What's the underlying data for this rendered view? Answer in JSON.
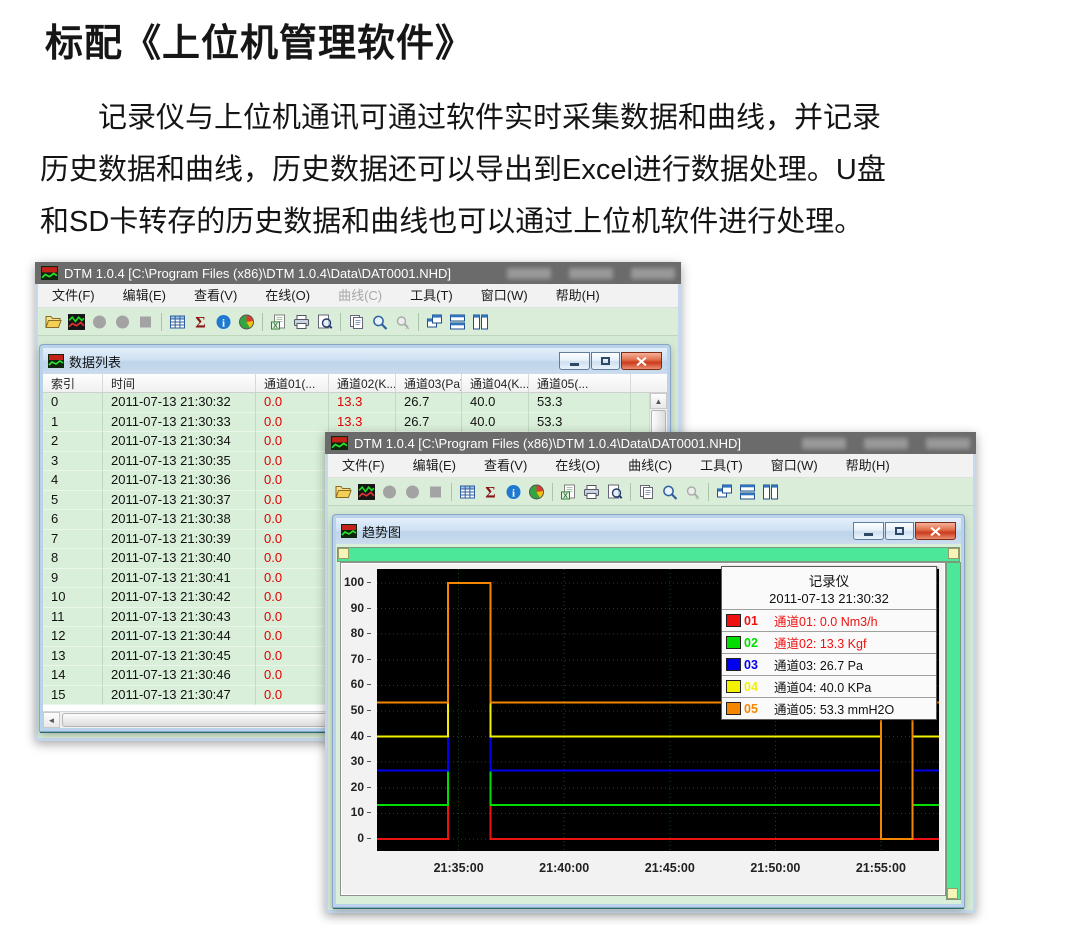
{
  "page": {
    "heading": "标配《上位机管理软件》",
    "para_lines": [
      "记录仪与上位机通讯可通过软件实时采集数据和曲线，并记录",
      "历史数据和曲线，历史数据还可以导出到Excel进行数据处理。U盘",
      "和SD卡转存的历史数据和曲线也可以通过上位机软件进行处理。"
    ]
  },
  "app": {
    "window_title": "DTM 1.0.4 [C:\\Program Files (x86)\\DTM 1.0.4\\Data\\DAT0001.NHD]",
    "menus": [
      "文件(F)",
      "编辑(E)",
      "查看(V)",
      "在线(O)",
      "曲线(C)",
      "工具(T)",
      "窗口(W)",
      "帮助(H)"
    ],
    "toolbar_groups": [
      [
        "open-file",
        "trend-view",
        "record-a",
        "record-b",
        "stop"
      ],
      [
        "data-grid",
        "statistics-sigma",
        "info",
        "pie-chart"
      ],
      [
        "export-excel",
        "print",
        "print-preview"
      ],
      [
        "copy",
        "zoom-search",
        "zoom-locked"
      ],
      [
        "cascade-windows",
        "tile-horizontal",
        "tile-vertical"
      ]
    ]
  },
  "window1": {
    "disabled_menu_index": 4
  },
  "window2": {
    "disabled_menu_index": -1
  },
  "data_list": {
    "title": "数据列表",
    "columns": [
      {
        "label": "索引",
        "w": 60
      },
      {
        "label": "时间",
        "w": 153
      },
      {
        "label": "通道01(...",
        "w": 73
      },
      {
        "label": "通道02(K...",
        "w": 67
      },
      {
        "label": "通道03(Pa)",
        "w": 66
      },
      {
        "label": "通道04(K...",
        "w": 67
      },
      {
        "label": "通道05(...",
        "w": 102
      }
    ],
    "red_columns": [
      2,
      3
    ],
    "rows": [
      {
        "cells": [
          "0",
          "2011-07-13 21:30:32",
          "0.0",
          "13.3",
          "26.7",
          "40.0",
          "53.3"
        ]
      },
      {
        "cells": [
          "1",
          "2011-07-13 21:30:33",
          "0.0",
          "13.3",
          "26.7",
          "40.0",
          "53.3"
        ]
      },
      {
        "cells": [
          "2",
          "2011-07-13 21:30:34",
          "0.0",
          "",
          "",
          "",
          ""
        ]
      },
      {
        "cells": [
          "3",
          "2011-07-13 21:30:35",
          "0.0",
          "",
          "",
          "",
          ""
        ]
      },
      {
        "cells": [
          "4",
          "2011-07-13 21:30:36",
          "0.0",
          "",
          "",
          "",
          ""
        ]
      },
      {
        "cells": [
          "5",
          "2011-07-13 21:30:37",
          "0.0",
          "",
          "",
          "",
          ""
        ]
      },
      {
        "cells": [
          "6",
          "2011-07-13 21:30:38",
          "0.0",
          "",
          "",
          "",
          ""
        ]
      },
      {
        "cells": [
          "7",
          "2011-07-13 21:30:39",
          "0.0",
          "",
          "",
          "",
          ""
        ]
      },
      {
        "cells": [
          "8",
          "2011-07-13 21:30:40",
          "0.0",
          "",
          "",
          "",
          ""
        ]
      },
      {
        "cells": [
          "9",
          "2011-07-13 21:30:41",
          "0.0",
          "",
          "",
          "",
          ""
        ]
      },
      {
        "cells": [
          "10",
          "2011-07-13 21:30:42",
          "0.0",
          "",
          "",
          "",
          ""
        ]
      },
      {
        "cells": [
          "11",
          "2011-07-13 21:30:43",
          "0.0",
          "",
          "",
          "",
          ""
        ]
      },
      {
        "cells": [
          "12",
          "2011-07-13 21:30:44",
          "0.0",
          "",
          "",
          "",
          ""
        ]
      },
      {
        "cells": [
          "13",
          "2011-07-13 21:30:45",
          "0.0",
          "",
          "",
          "",
          ""
        ]
      },
      {
        "cells": [
          "14",
          "2011-07-13 21:30:46",
          "0.0",
          "",
          "",
          "",
          ""
        ]
      },
      {
        "cells": [
          "15",
          "2011-07-13 21:30:47",
          "0.0",
          "",
          "",
          "",
          ""
        ]
      }
    ]
  },
  "trend": {
    "title": "趋势图",
    "legend": {
      "title": "记录仪",
      "timestamp": "2011-07-13 21:30:32",
      "entries": [
        {
          "id": "01",
          "swatch": "#ee1111",
          "label": "通道01: 0.0 Nm3/h",
          "text_color": "#ee1111"
        },
        {
          "id": "02",
          "swatch": "#00dd00",
          "label": "通道02: 13.3 Kgf",
          "text_color": "#ee1111"
        },
        {
          "id": "03",
          "swatch": "#0000ee",
          "label": "通道03: 26.7 Pa",
          "text_color": "#111111"
        },
        {
          "id": "04",
          "swatch": "#f2f200",
          "label": "通道04: 40.0 KPa",
          "text_color": "#111111"
        },
        {
          "id": "05",
          "swatch": "#f58600",
          "label": "通道05: 53.3 mmH2O",
          "text_color": "#111111"
        }
      ]
    }
  },
  "chart_data": {
    "type": "line",
    "title": "趋势图",
    "x_unit": "seconds after 21:30:00",
    "x_range": [
      68,
      1665
    ],
    "x_ticks": [
      {
        "t": 300,
        "label": "21:35:00"
      },
      {
        "t": 600,
        "label": "21:40:00"
      },
      {
        "t": 900,
        "label": "21:45:00"
      },
      {
        "t": 1200,
        "label": "21:50:00"
      },
      {
        "t": 1500,
        "label": "21:55:00"
      }
    ],
    "ylim": [
      0,
      100
    ],
    "y_ticks": [
      0,
      10,
      20,
      30,
      40,
      50,
      60,
      70,
      80,
      90,
      100
    ],
    "grid": true,
    "plot_bg": "#000000",
    "grid_color": "#0c520c",
    "series": [
      {
        "name": "通道01",
        "color": "#ee1111",
        "baseline": 0,
        "points": [
          [
            68,
            0
          ],
          [
            270,
            0
          ],
          [
            270,
            100
          ],
          [
            390,
            100
          ],
          [
            390,
            0
          ],
          [
            1500,
            0
          ],
          [
            1590,
            0
          ],
          [
            1665,
            0
          ]
        ]
      },
      {
        "name": "通道02",
        "color": "#00dd00",
        "baseline": 13.3,
        "points": [
          [
            68,
            13.3
          ],
          [
            270,
            13.3
          ],
          [
            270,
            100
          ],
          [
            390,
            100
          ],
          [
            390,
            13.3
          ],
          [
            1500,
            13.3
          ],
          [
            1500,
            0
          ],
          [
            1590,
            0
          ],
          [
            1590,
            13.3
          ],
          [
            1665,
            13.3
          ]
        ]
      },
      {
        "name": "通道03",
        "color": "#0000ee",
        "baseline": 26.7,
        "points": [
          [
            68,
            26.7
          ],
          [
            270,
            26.7
          ],
          [
            270,
            100
          ],
          [
            390,
            100
          ],
          [
            390,
            26.7
          ],
          [
            1500,
            26.7
          ],
          [
            1500,
            0
          ],
          [
            1590,
            0
          ],
          [
            1590,
            26.7
          ],
          [
            1665,
            26.7
          ]
        ]
      },
      {
        "name": "通道04",
        "color": "#f2f200",
        "baseline": 40,
        "points": [
          [
            68,
            40
          ],
          [
            270,
            40
          ],
          [
            270,
            100
          ],
          [
            390,
            100
          ],
          [
            390,
            40
          ],
          [
            1500,
            40
          ],
          [
            1500,
            0
          ],
          [
            1590,
            0
          ],
          [
            1590,
            40
          ],
          [
            1665,
            40
          ]
        ]
      },
      {
        "name": "通道05",
        "color": "#f58600",
        "baseline": 53.3,
        "points": [
          [
            68,
            53.3
          ],
          [
            270,
            53.3
          ],
          [
            270,
            100
          ],
          [
            390,
            100
          ],
          [
            390,
            53.3
          ],
          [
            1500,
            53.3
          ],
          [
            1500,
            0
          ],
          [
            1590,
            0
          ],
          [
            1590,
            53.3
          ],
          [
            1665,
            53.3
          ]
        ]
      }
    ]
  }
}
